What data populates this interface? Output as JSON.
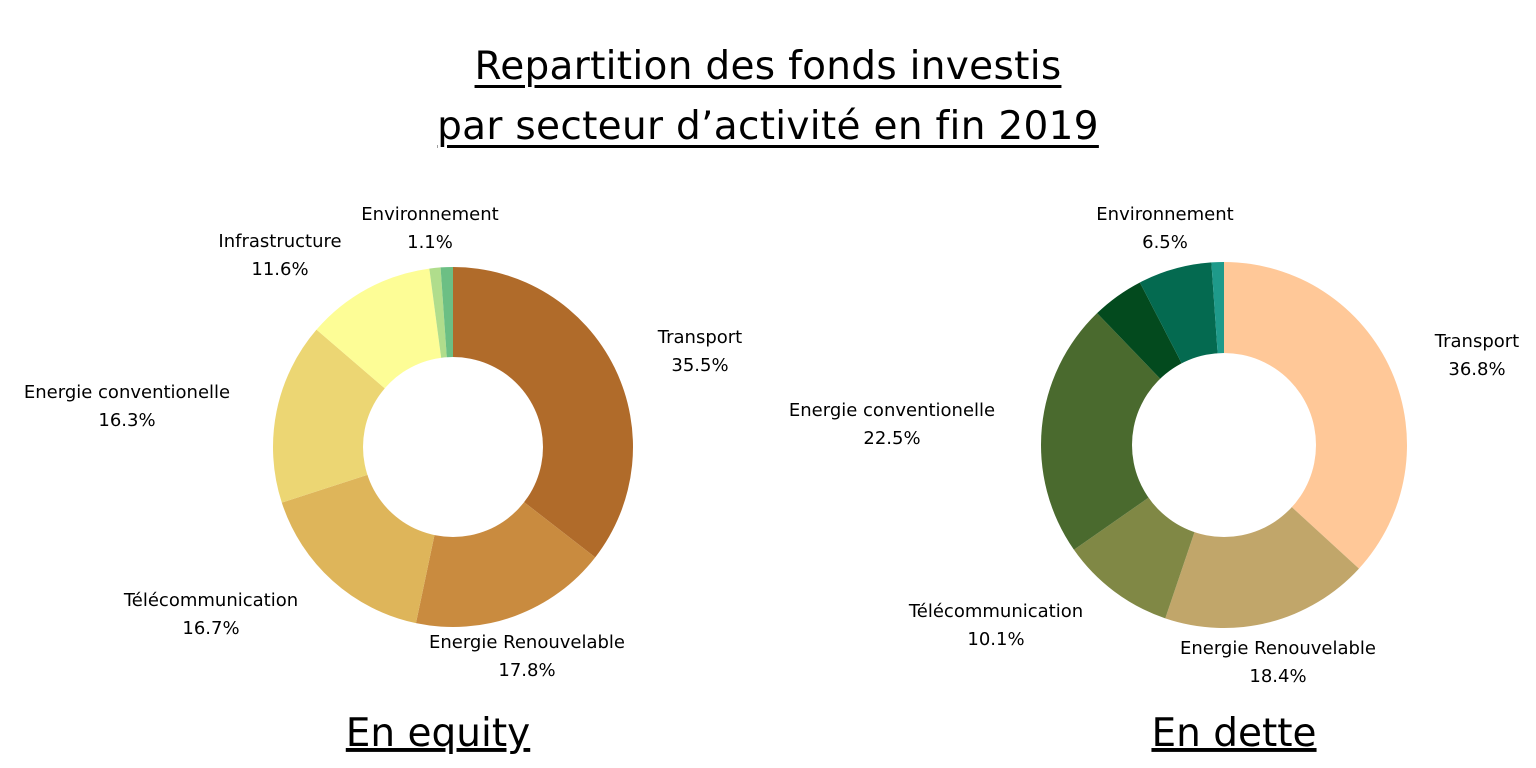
{
  "title": {
    "line1": "Repartition des fonds investis",
    "line2": "par secteur d’activité en fin 2019"
  },
  "chart_data": [
    {
      "type": "pie",
      "variant": "donut",
      "subtitle": "En equity",
      "slices": [
        {
          "label": "Transport",
          "value": 35.5,
          "value_label": "35.5%",
          "color": "#B06B2A"
        },
        {
          "label": "Energie Renouvelable",
          "value": 17.8,
          "value_label": "17.8%",
          "color": "#C98B3F"
        },
        {
          "label": "Télécommunication",
          "value": 16.7,
          "value_label": "16.7%",
          "color": "#DEB55A"
        },
        {
          "label": "Energie conventionelle",
          "value": 16.3,
          "value_label": "16.3%",
          "color": "#ECD673"
        },
        {
          "label": "Infrastructure",
          "value": 11.6,
          "value_label": "11.6%",
          "color": "#FDFD96"
        },
        {
          "label": "",
          "value": 1.0,
          "value_label": "",
          "color": "#B0DD8C"
        },
        {
          "label": "Environnement",
          "value": 1.1,
          "value_label": "1.1%",
          "color": "#6CBF84"
        }
      ]
    },
    {
      "type": "pie",
      "variant": "donut",
      "subtitle": "En dette",
      "slices": [
        {
          "label": "Transport",
          "value": 36.8,
          "value_label": "36.8%",
          "color": "#FFC898"
        },
        {
          "label": "Energie Renouvelable",
          "value": 18.4,
          "value_label": "18.4%",
          "color": "#C1A66A"
        },
        {
          "label": "Télécommunication",
          "value": 10.1,
          "value_label": "10.1%",
          "color": "#808845"
        },
        {
          "label": "Energie conventionelle",
          "value": 22.5,
          "value_label": "22.5%",
          "color": "#4A6A2E"
        },
        {
          "label": "",
          "value": 4.6,
          "value_label": "",
          "color": "#034A1E"
        },
        {
          "label": "Environnement",
          "value": 6.5,
          "value_label": "6.5%",
          "color": "#046A50"
        },
        {
          "label": "",
          "value": 1.1,
          "value_label": "",
          "color": "#1E9A8A"
        }
      ]
    }
  ]
}
